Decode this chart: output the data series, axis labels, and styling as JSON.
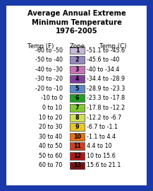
{
  "title": "Average Annual Extreme\nMinimum Temperature\n1976-2005",
  "col_headers": [
    "Temp (F)",
    "Zone",
    "Temp (C)"
  ],
  "rows": [
    {
      "temp_f": "-60 to -50",
      "zone": "1",
      "color": "#c8b8d8",
      "temp_c": "-51.1 to -45.6"
    },
    {
      "temp_f": "-50 to -40",
      "zone": "2",
      "color": "#9888c0",
      "temp_c": "-45.6 to -40"
    },
    {
      "temp_f": "-40 to -30",
      "zone": "3",
      "color": "#c870b8",
      "temp_c": "-40 to -34.4"
    },
    {
      "temp_f": "-30 to -20",
      "zone": "4",
      "color": "#8040a0",
      "temp_c": "-34.4 to -28.9"
    },
    {
      "temp_f": "-20 to -10",
      "zone": "5",
      "color": "#5888c8",
      "temp_c": "-28.9 to -23.3"
    },
    {
      "temp_f": "-10 to 0",
      "zone": "6",
      "color": "#20a020",
      "temp_c": "-23.3 to -17.8"
    },
    {
      "temp_f": "0 to 10",
      "zone": "7",
      "color": "#80c830",
      "temp_c": "-17.8 to -12.2"
    },
    {
      "temp_f": "10 to 20",
      "zone": "8",
      "color": "#d0e050",
      "temp_c": "-12.2 to -6.7"
    },
    {
      "temp_f": "20 to 30",
      "zone": "9",
      "color": "#e8c820",
      "temp_c": "-6.7 to -1.1"
    },
    {
      "temp_f": "30 to 40",
      "zone": "10",
      "color": "#e87010",
      "temp_c": "-1.1 to 4.4"
    },
    {
      "temp_f": "40 to 50",
      "zone": "11",
      "color": "#d04020",
      "temp_c": "4.4 to 10"
    },
    {
      "temp_f": "50 to 60",
      "zone": "12",
      "color": "#b01818",
      "temp_c": "10 to 15.6"
    },
    {
      "temp_f": "60 to 70",
      "zone": "13",
      "color": "#781010",
      "temp_c": "15.6 to 21.1"
    }
  ],
  "bg_color": "#ffffff",
  "outer_bg": "#1a3aaa",
  "border_color": "#1a3aaa",
  "title_fontsize": 7.2,
  "header_fontsize": 6.2,
  "row_fontsize": 5.8
}
